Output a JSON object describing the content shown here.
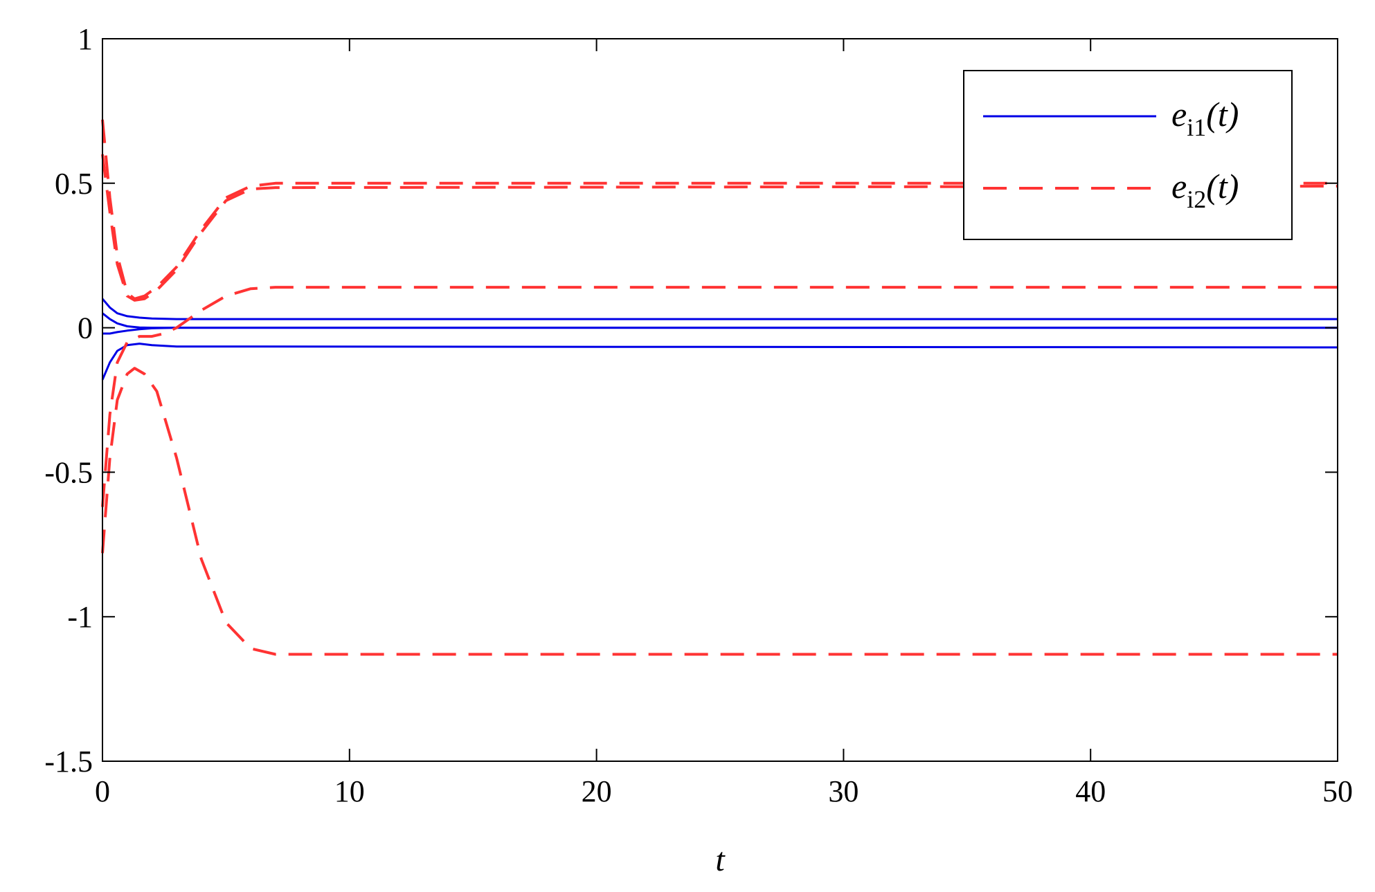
{
  "chart_data": {
    "type": "line",
    "title": "",
    "xlabel": "t",
    "ylabel": "",
    "xlim": [
      0,
      50
    ],
    "ylim": [
      -1.5,
      1
    ],
    "x_ticks": [
      0,
      10,
      20,
      30,
      40,
      50
    ],
    "y_ticks": [
      1,
      0.5,
      0,
      -0.5,
      -1,
      -1.5
    ],
    "x_tick_labels": [
      "0",
      "10",
      "20",
      "30",
      "40",
      "50"
    ],
    "y_tick_labels": [
      "1",
      "0.5",
      "0",
      "-0.5",
      "-1",
      "-1.5"
    ],
    "grid": false,
    "legend_position": "top-right",
    "legend": [
      {
        "label": "e",
        "sub": "i1",
        "suffix": "(t)",
        "color": "#0000e6",
        "style": "solid"
      },
      {
        "label": "e",
        "sub": "i2",
        "suffix": "(t)",
        "color": "#ff3333",
        "style": "dashed"
      }
    ],
    "series": [
      {
        "group": "e_i1",
        "color": "#0000e6",
        "style": "solid",
        "points": [
          [
            0,
            0.1
          ],
          [
            0.3,
            0.07
          ],
          [
            0.6,
            0.05
          ],
          [
            1,
            0.04
          ],
          [
            1.5,
            0.035
          ],
          [
            2,
            0.032
          ],
          [
            3,
            0.03
          ],
          [
            50,
            0.03
          ]
        ]
      },
      {
        "group": "e_i1",
        "color": "#0000e6",
        "style": "solid",
        "points": [
          [
            0,
            0.05
          ],
          [
            0.3,
            0.03
          ],
          [
            0.6,
            0.015
          ],
          [
            1,
            0.005
          ],
          [
            1.5,
            0.001
          ],
          [
            2,
            0
          ],
          [
            50,
            0
          ]
        ]
      },
      {
        "group": "e_i1",
        "color": "#0000e6",
        "style": "solid",
        "points": [
          [
            0,
            -0.02
          ],
          [
            0.3,
            -0.02
          ],
          [
            0.6,
            -0.015
          ],
          [
            1,
            -0.01
          ],
          [
            1.5,
            -0.005
          ],
          [
            2,
            -0.002
          ],
          [
            3,
            0
          ],
          [
            50,
            0
          ]
        ]
      },
      {
        "group": "e_i1",
        "color": "#0000e6",
        "style": "solid",
        "points": [
          [
            0,
            -0.18
          ],
          [
            0.3,
            -0.12
          ],
          [
            0.6,
            -0.08
          ],
          [
            1,
            -0.06
          ],
          [
            1.5,
            -0.055
          ],
          [
            2,
            -0.06
          ],
          [
            3,
            -0.065
          ],
          [
            50,
            -0.068
          ]
        ]
      },
      {
        "group": "e_i2",
        "color": "#ff3333",
        "style": "dashed",
        "points": [
          [
            0,
            0.72
          ],
          [
            0.3,
            0.45
          ],
          [
            0.6,
            0.25
          ],
          [
            1,
            0.12
          ],
          [
            1.3,
            0.1
          ],
          [
            1.7,
            0.11
          ],
          [
            2.2,
            0.14
          ],
          [
            3,
            0.21
          ],
          [
            4,
            0.34
          ],
          [
            5,
            0.45
          ],
          [
            6,
            0.49
          ],
          [
            7,
            0.5
          ],
          [
            50,
            0.5
          ]
        ]
      },
      {
        "group": "e_i2",
        "color": "#ff3333",
        "style": "dashed",
        "points": [
          [
            0,
            0.6
          ],
          [
            0.3,
            0.4
          ],
          [
            0.6,
            0.22
          ],
          [
            1,
            0.11
          ],
          [
            1.3,
            0.095
          ],
          [
            1.7,
            0.1
          ],
          [
            2.2,
            0.13
          ],
          [
            3,
            0.2
          ],
          [
            4,
            0.33
          ],
          [
            5,
            0.44
          ],
          [
            6,
            0.48
          ],
          [
            7,
            0.485
          ],
          [
            50,
            0.49
          ]
        ]
      },
      {
        "group": "e_i2",
        "color": "#ff3333",
        "style": "dashed",
        "points": [
          [
            0,
            -0.62
          ],
          [
            0.3,
            -0.3
          ],
          [
            0.6,
            -0.12
          ],
          [
            1,
            -0.05
          ],
          [
            1.5,
            -0.03
          ],
          [
            2,
            -0.03
          ],
          [
            2.5,
            -0.02
          ],
          [
            3,
            0
          ],
          [
            4,
            0.06
          ],
          [
            5,
            0.11
          ],
          [
            6,
            0.135
          ],
          [
            7,
            0.14
          ],
          [
            50,
            0.14
          ]
        ]
      },
      {
        "group": "e_i2",
        "color": "#ff3333",
        "style": "dashed",
        "points": [
          [
            0,
            -0.78
          ],
          [
            0.3,
            -0.45
          ],
          [
            0.6,
            -0.25
          ],
          [
            1,
            -0.16
          ],
          [
            1.3,
            -0.14
          ],
          [
            1.7,
            -0.16
          ],
          [
            2.2,
            -0.22
          ],
          [
            3,
            -0.45
          ],
          [
            4,
            -0.8
          ],
          [
            5,
            -1.02
          ],
          [
            6,
            -1.11
          ],
          [
            7,
            -1.13
          ],
          [
            50,
            -1.13
          ]
        ]
      }
    ]
  }
}
